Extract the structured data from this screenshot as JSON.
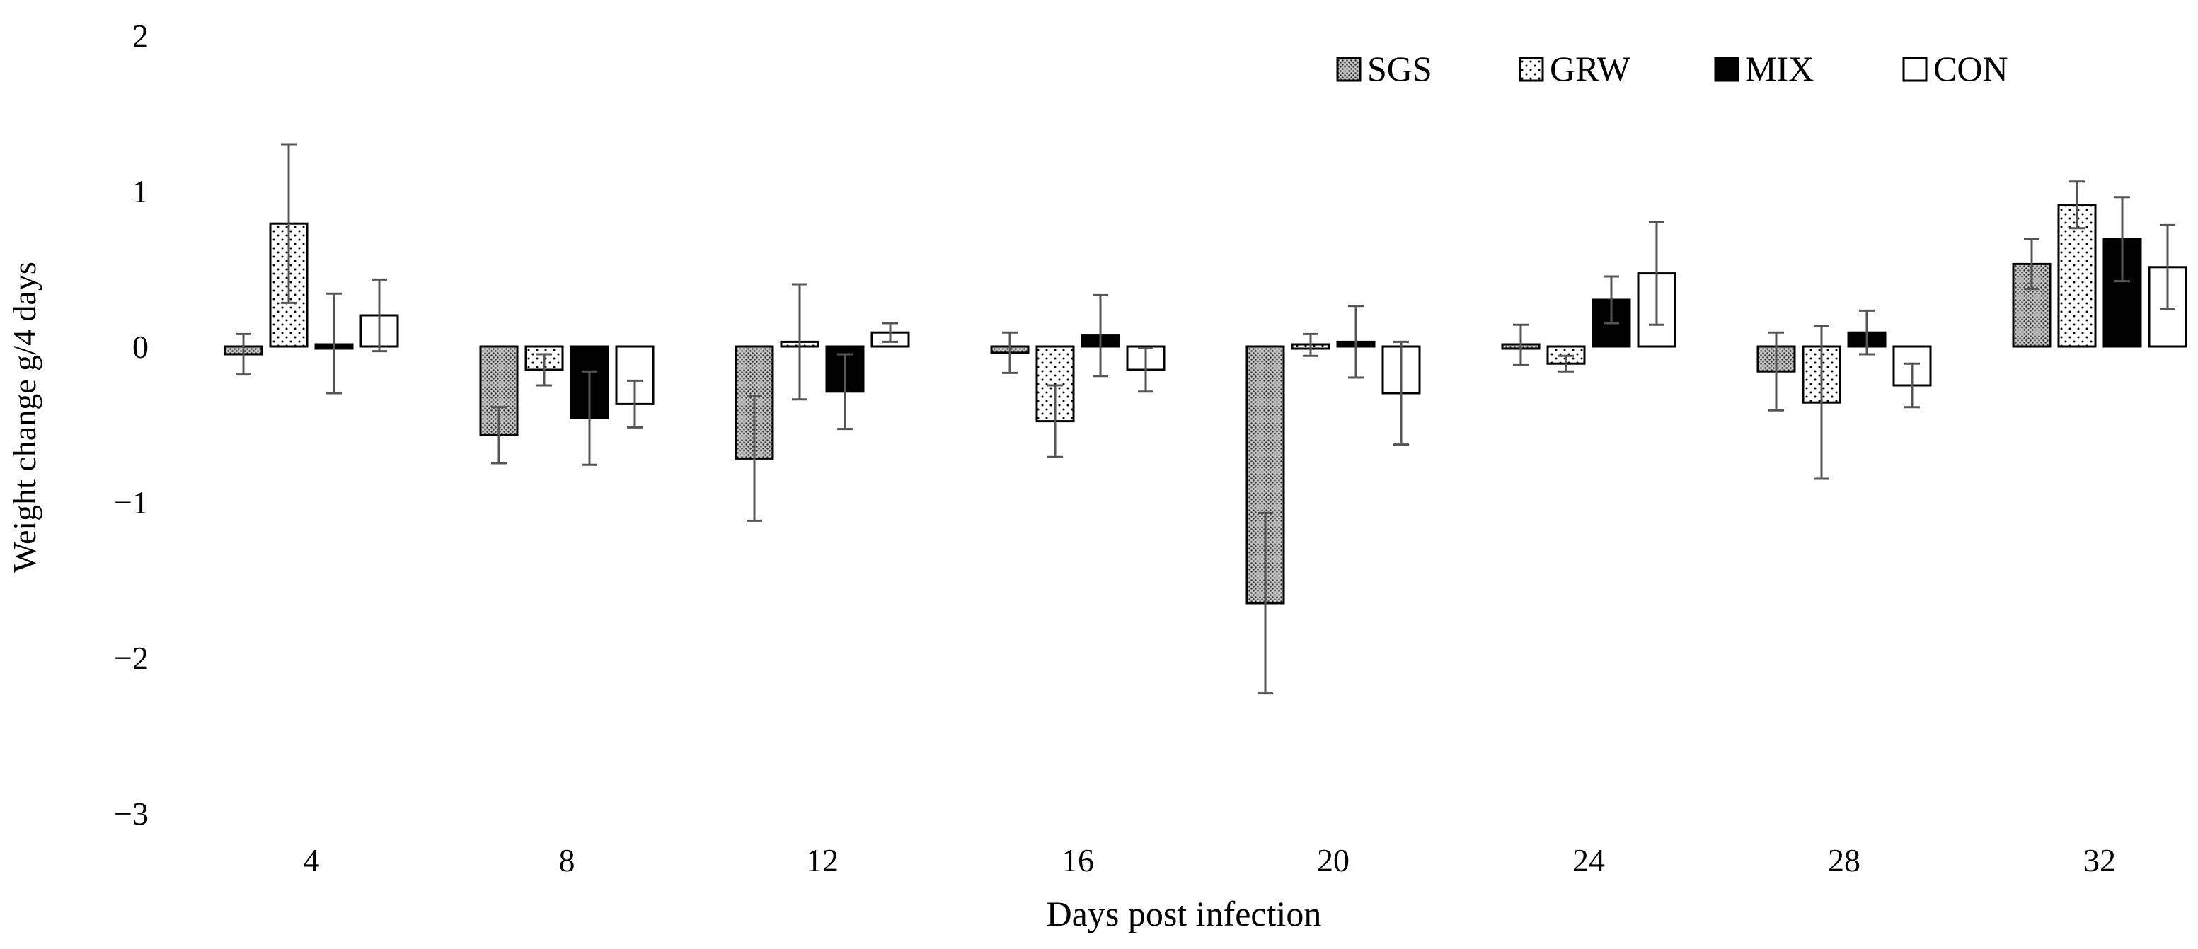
{
  "chart_data": {
    "type": "bar",
    "title": "",
    "xlabel": "Days post infection",
    "ylabel": "Weight change g/4 days",
    "ylim": [
      -3,
      2
    ],
    "yticks": [
      "2",
      "1",
      "0",
      "−1",
      "−2",
      "−3"
    ],
    "ytick_values": [
      2,
      1,
      0,
      -1,
      -2,
      -3
    ],
    "categories": [
      "4",
      "8",
      "12",
      "16",
      "20",
      "24",
      "28",
      "32"
    ],
    "legend_position": "top-right",
    "series": [
      {
        "name": "SGS",
        "pattern": "dense-dots",
        "values": [
          -0.05,
          -0.57,
          -0.72,
          -0.04,
          -1.65,
          0.01,
          -0.16,
          0.53
        ],
        "errors": [
          0.13,
          0.18,
          0.4,
          0.13,
          0.58,
          0.13,
          0.25,
          0.16
        ]
      },
      {
        "name": "GRW",
        "pattern": "sparse-dots",
        "values": [
          0.79,
          -0.15,
          0.03,
          -0.48,
          0.01,
          -0.11,
          -0.36,
          0.91
        ],
        "errors": [
          0.51,
          0.1,
          0.37,
          0.23,
          0.07,
          0.05,
          0.49,
          0.15
        ]
      },
      {
        "name": "MIX",
        "pattern": "solid-black",
        "values": [
          0.02,
          -0.46,
          -0.29,
          0.07,
          0.03,
          0.3,
          0.09,
          0.69
        ],
        "errors": [
          0.32,
          0.3,
          0.24,
          0.26,
          0.23,
          0.15,
          0.14,
          0.27
        ]
      },
      {
        "name": "CON",
        "pattern": "white",
        "values": [
          0.2,
          -0.37,
          0.09,
          -0.15,
          -0.3,
          0.47,
          -0.25,
          0.51
        ],
        "errors": [
          0.23,
          0.15,
          0.06,
          0.14,
          0.33,
          0.33,
          0.14,
          0.27
        ]
      }
    ]
  }
}
